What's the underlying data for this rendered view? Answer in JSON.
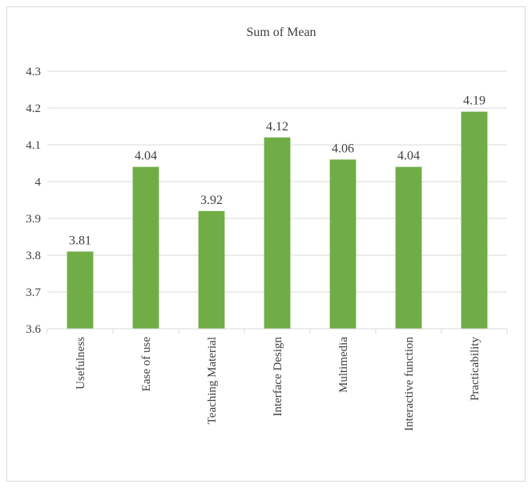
{
  "chart_data": {
    "type": "bar",
    "title": "Sum of Mean",
    "xlabel": "",
    "ylabel": "",
    "categories": [
      "Usefulness",
      "Ease of use",
      "Teaching Material",
      "Interface Design",
      "Multimedia",
      "Interactive function",
      "Practicability"
    ],
    "values": [
      3.81,
      4.04,
      3.92,
      4.12,
      4.06,
      4.04,
      4.19
    ],
    "data_labels": [
      "3.81",
      "4.04",
      "3.92",
      "4.12",
      "4.06",
      "4.04",
      "4.19"
    ],
    "ylim": [
      3.6,
      4.3
    ],
    "yticks": [
      3.6,
      3.7,
      3.8,
      3.9,
      4.0,
      4.1,
      4.2,
      4.3
    ],
    "ytick_labels": [
      "3.6",
      "3.7",
      "3.8",
      "3.9",
      "4",
      "4.1",
      "4.2",
      "4.3"
    ],
    "grid": true,
    "legend": "none",
    "bar_color": "#70ad47",
    "gridline_color": "#d9d9d9"
  }
}
